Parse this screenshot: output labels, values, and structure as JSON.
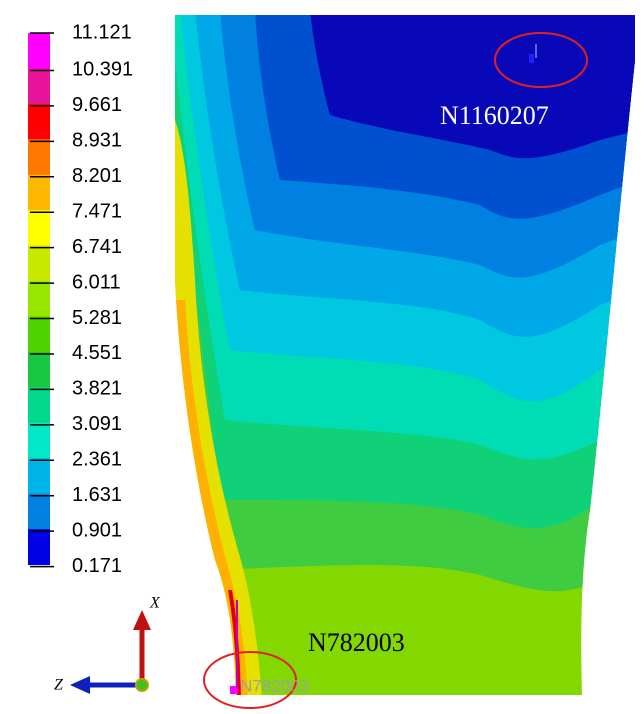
{
  "legend": {
    "labels": [
      "11.121",
      "10.391",
      "9.661",
      "8.931",
      "8.201",
      "7.471",
      "6.741",
      "6.011",
      "5.281",
      "4.551",
      "3.821",
      "3.091",
      "2.361",
      "1.631",
      "0.901",
      "0.171"
    ],
    "colors": [
      "#ff00ff",
      "#e8149a",
      "#ff0000",
      "#ff7800",
      "#ffb800",
      "#ffff00",
      "#c8ea00",
      "#96e600",
      "#50d400",
      "#18c840",
      "#00d88c",
      "#00e8c8",
      "#00b4ea",
      "#0080e0",
      "#0000e6"
    ]
  },
  "nodes": [
    {
      "label": "N1160207"
    },
    {
      "label": "N782003"
    },
    {
      "label": "N782003"
    }
  ],
  "axes": {
    "x": "X",
    "z": "Z"
  }
}
